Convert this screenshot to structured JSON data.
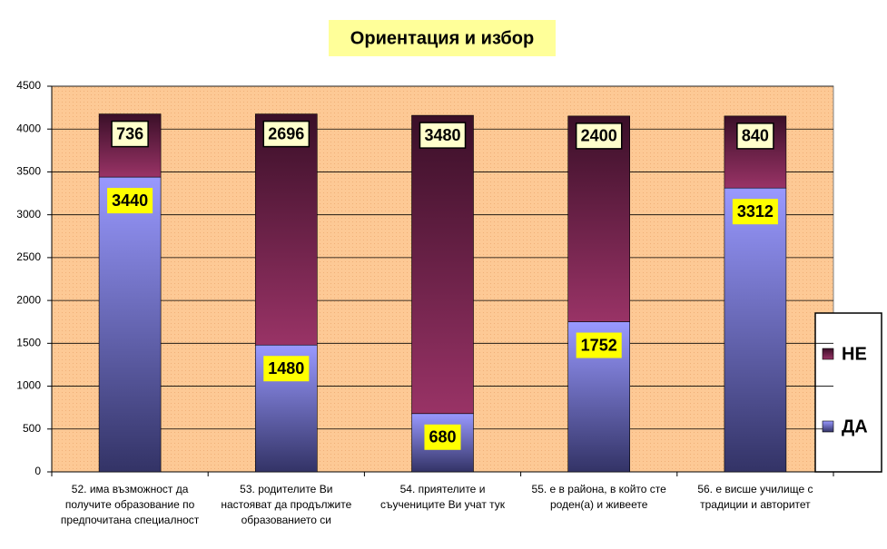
{
  "chart_data": {
    "type": "stacked-bar",
    "title": "Ориентация и избор",
    "categories": [
      [
        "52. има възможност да",
        "получите образование по",
        "предпочитана специалност"
      ],
      [
        "53. родителите Ви",
        "настояват да продължите",
        "образованието си"
      ],
      [
        "54. приятелите и",
        "съучениците Ви учат тук"
      ],
      [
        "55. е в района, в който сте",
        "роден(а) и живеете"
      ],
      [
        "56. е висше училище с",
        "традиции и авторитет"
      ]
    ],
    "series": [
      {
        "name": "ДА",
        "color": "#9999ff",
        "values": [
          3440,
          1480,
          680,
          1752,
          3312
        ]
      },
      {
        "name": "НЕ",
        "color": "#993366",
        "values": [
          736,
          2696,
          3480,
          2400,
          840
        ]
      }
    ],
    "ylim": [
      0,
      4500
    ],
    "yticks": [
      0,
      500,
      1000,
      1500,
      2000,
      2500,
      3000,
      3500,
      4000,
      4500
    ],
    "grid": true,
    "legend": "right"
  }
}
